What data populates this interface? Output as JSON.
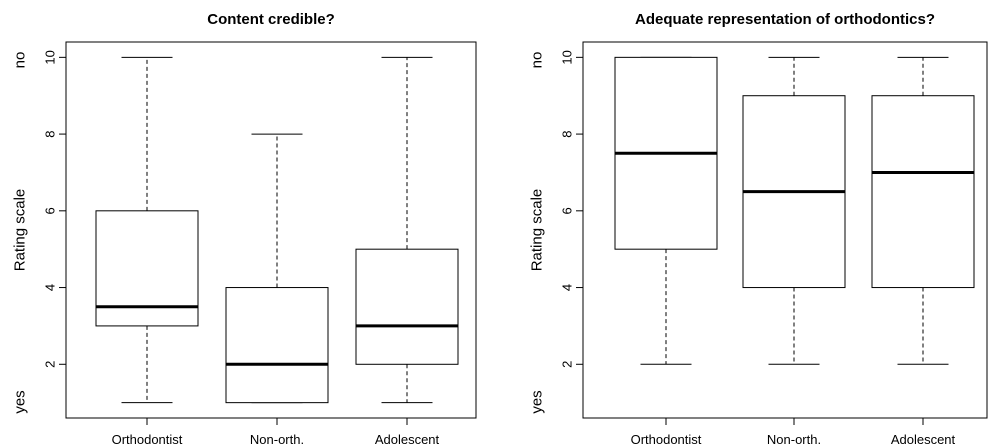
{
  "chart_data": [
    {
      "type": "box",
      "title": "Content credible?",
      "ylabel": "Rating scale",
      "y_top_label": "no",
      "y_bottom_label": "yes",
      "yticks": [
        2,
        4,
        6,
        8,
        10
      ],
      "ylim": [
        0.6,
        10.4
      ],
      "grid": false,
      "categories": [
        "Orthodontist",
        "Non-orth.",
        "Adolescent"
      ],
      "boxes": [
        {
          "min": 1,
          "q1": 3,
          "median": 3.5,
          "q3": 6,
          "max": 10
        },
        {
          "min": 1,
          "q1": 1,
          "median": 2,
          "q3": 4,
          "max": 8
        },
        {
          "min": 1,
          "q1": 2,
          "median": 3,
          "q3": 5,
          "max": 10
        }
      ]
    },
    {
      "type": "box",
      "title": "Adequate representation of orthodontics?",
      "ylabel": "Rating scale",
      "y_top_label": "no",
      "y_bottom_label": "yes",
      "yticks": [
        2,
        4,
        6,
        8,
        10
      ],
      "ylim": [
        0.6,
        10.4
      ],
      "grid": false,
      "categories": [
        "Orthodontist",
        "Non-orth.",
        "Adolescent"
      ],
      "boxes": [
        {
          "min": 2,
          "q1": 5,
          "median": 7.5,
          "q3": 10,
          "max": 10
        },
        {
          "min": 2,
          "q1": 4,
          "median": 6.5,
          "q3": 9,
          "max": 10
        },
        {
          "min": 2,
          "q1": 4,
          "median": 7,
          "q3": 9,
          "max": 10
        }
      ]
    }
  ]
}
